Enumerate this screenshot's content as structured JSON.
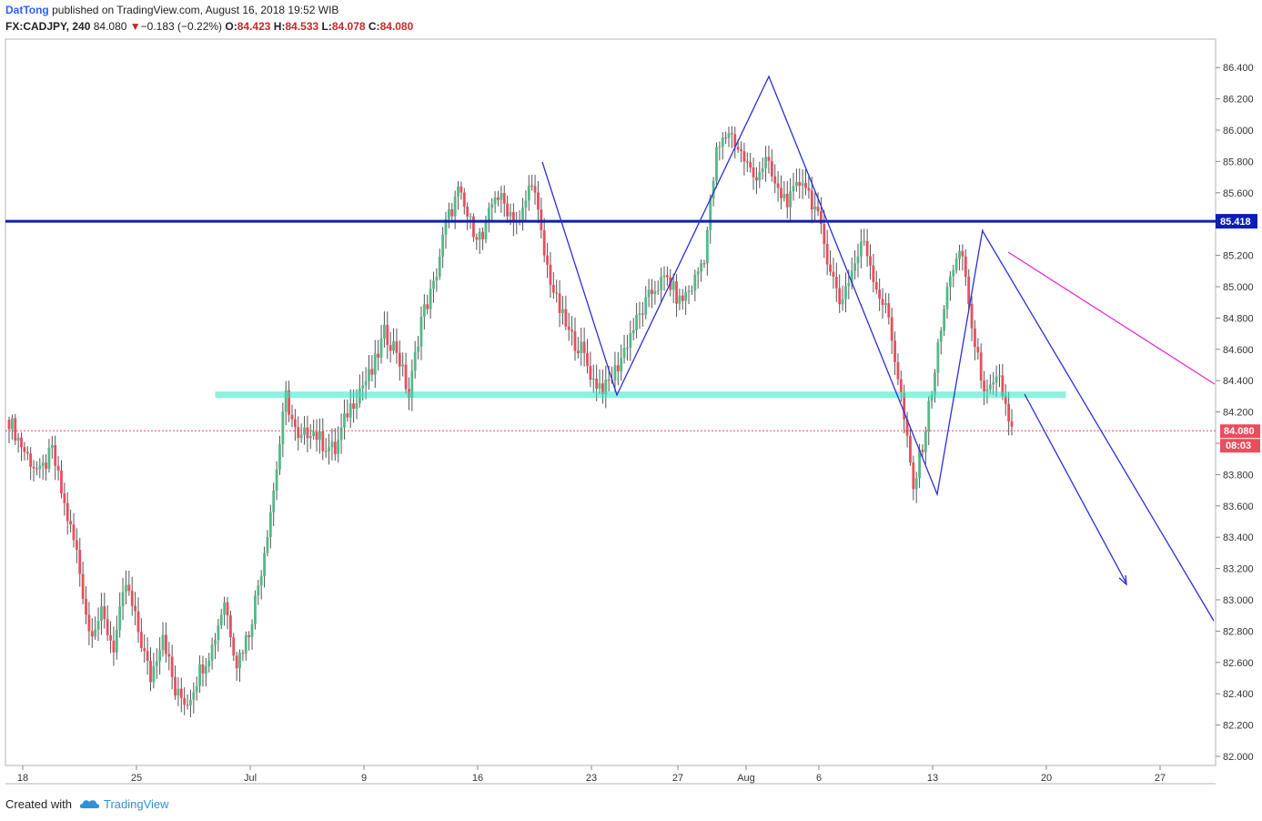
{
  "header": {
    "author": "DatTong",
    "published_text": "published on TradingView.com, August 16, 2018 19:52 WIB",
    "symbol": "FX:CADJPY, 240",
    "last": "84.080",
    "change": "−0.183 (−0.22%)",
    "open_label": "O:",
    "open": "84.423",
    "high_label": "H:",
    "high": "84.533",
    "low_label": "L:",
    "low": "84.078",
    "close_label": "C:",
    "close": "84.080"
  },
  "footer": {
    "created_with": "Created with",
    "brand": "TradingView"
  },
  "colors": {
    "up": "#53b987",
    "down": "#eb4d5c",
    "wick": "#555555",
    "resistance": "#0d1eb5",
    "support": "#2ee8c2",
    "pattern": "#2b2fd8",
    "trend": "#e629d6",
    "price_tag": "#eb4d5c",
    "resistance_tag": "#0d1eb5"
  },
  "chart_data": {
    "type": "candlestick",
    "x_tick_labels": [
      "18",
      "25",
      "Jul",
      "9",
      "16",
      "23",
      "27",
      "Aug",
      "6",
      "13",
      "20",
      "27"
    ],
    "y_tick_labels": [
      "86.400",
      "86.200",
      "86.000",
      "85.800",
      "85.600",
      "85.400",
      "85.200",
      "85.000",
      "84.800",
      "84.600",
      "84.400",
      "84.200",
      "84.000",
      "83.800",
      "83.600",
      "83.400",
      "83.200",
      "83.000",
      "82.800",
      "82.600",
      "82.400",
      "82.200",
      "82.000"
    ],
    "ylim": [
      81.94,
      86.45
    ],
    "levels": {
      "resistance": {
        "value": 85.418,
        "label": "85.418"
      },
      "support": {
        "value": 84.31
      },
      "last_price": {
        "value": 84.08,
        "label": "84.080",
        "countdown": "08:03"
      }
    },
    "close_path": [
      [
        0,
        84.15
      ],
      [
        5,
        83.95
      ],
      [
        10,
        83.8
      ],
      [
        14,
        83.95
      ],
      [
        18,
        83.6
      ],
      [
        22,
        83.3
      ],
      [
        26,
        82.8
      ],
      [
        30,
        82.9
      ],
      [
        34,
        82.7
      ],
      [
        38,
        83.1
      ],
      [
        42,
        82.8
      ],
      [
        46,
        82.5
      ],
      [
        50,
        82.8
      ],
      [
        54,
        82.4
      ],
      [
        58,
        82.35
      ],
      [
        62,
        82.55
      ],
      [
        66,
        82.7
      ],
      [
        70,
        83.0
      ],
      [
        74,
        82.6
      ],
      [
        78,
        82.8
      ],
      [
        82,
        83.2
      ],
      [
        86,
        83.7
      ],
      [
        90,
        84.3
      ],
      [
        94,
        84.0
      ],
      [
        98,
        84.1
      ],
      [
        102,
        84.0
      ],
      [
        106,
        83.95
      ],
      [
        110,
        84.2
      ],
      [
        114,
        84.35
      ],
      [
        118,
        84.45
      ],
      [
        122,
        84.7
      ],
      [
        126,
        84.6
      ],
      [
        130,
        84.3
      ],
      [
        134,
        84.8
      ],
      [
        138,
        85.0
      ],
      [
        142,
        85.4
      ],
      [
        146,
        85.6
      ],
      [
        150,
        85.4
      ],
      [
        154,
        85.3
      ],
      [
        158,
        85.6
      ],
      [
        162,
        85.5
      ],
      [
        166,
        85.4
      ],
      [
        170,
        85.7
      ],
      [
        174,
        85.2
      ],
      [
        178,
        84.9
      ],
      [
        182,
        84.7
      ],
      [
        186,
        84.6
      ],
      [
        190,
        84.4
      ],
      [
        194,
        84.35
      ],
      [
        198,
        84.5
      ],
      [
        202,
        84.7
      ],
      [
        206,
        84.85
      ],
      [
        210,
        85.0
      ],
      [
        214,
        85.05
      ],
      [
        218,
        84.9
      ],
      [
        222,
        85.0
      ],
      [
        226,
        85.2
      ],
      [
        230,
        85.85
      ],
      [
        234,
        86.0
      ],
      [
        238,
        85.85
      ],
      [
        242,
        85.7
      ],
      [
        246,
        85.8
      ],
      [
        250,
        85.6
      ],
      [
        254,
        85.55
      ],
      [
        258,
        85.7
      ],
      [
        262,
        85.5
      ],
      [
        266,
        85.2
      ],
      [
        270,
        84.9
      ],
      [
        274,
        85.1
      ],
      [
        278,
        85.3
      ],
      [
        282,
        85.0
      ],
      [
        286,
        84.8
      ],
      [
        290,
        84.3
      ],
      [
        294,
        83.7
      ],
      [
        298,
        84.1
      ],
      [
        302,
        84.6
      ],
      [
        306,
        85.1
      ],
      [
        310,
        85.2
      ],
      [
        314,
        84.6
      ],
      [
        318,
        84.3
      ],
      [
        322,
        84.4
      ],
      [
        326,
        84.08
      ]
    ],
    "bar_count": 327
  }
}
